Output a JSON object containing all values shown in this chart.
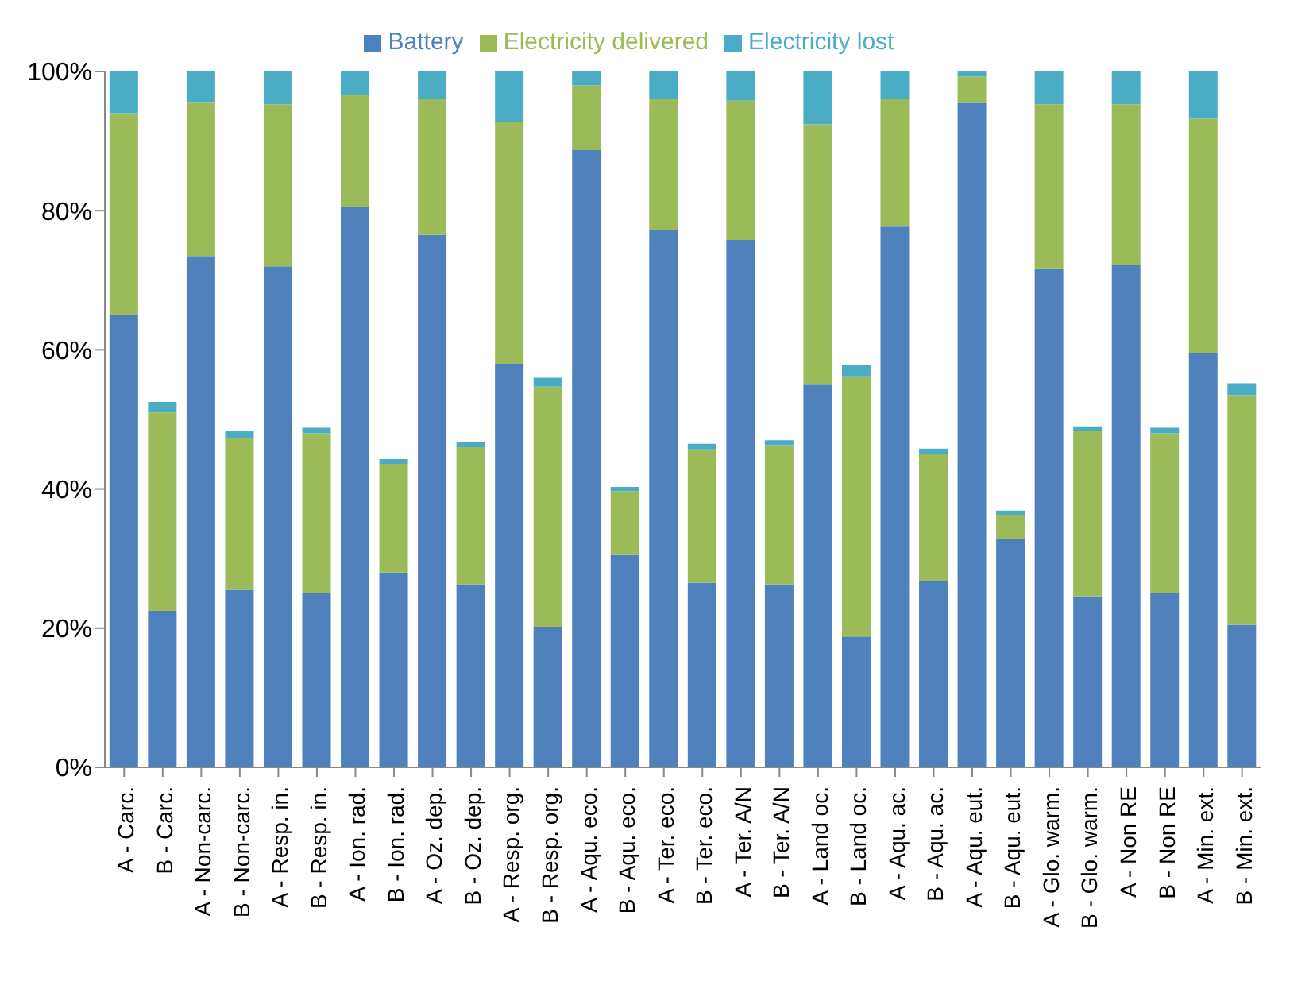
{
  "chart_data": {
    "type": "bar",
    "stacked": true,
    "legend": "top",
    "grid": false,
    "categories": [
      "A - Carc.",
      "B - Carc.",
      "A - Non-carc.",
      "B - Non-carc.",
      "A - Resp. in.",
      "B - Resp. in.",
      "A - Ion. rad.",
      "B - Ion. rad.",
      "A - Oz. dep.",
      "B - Oz. dep.",
      "A - Resp. org.",
      "B - Resp. org.",
      "A - Aqu. eco.",
      "B - Aqu. eco.",
      "A - Ter. eco.",
      "B - Ter. eco.",
      "A - Ter. A/N",
      "B - Ter. A/N",
      "A - Land oc.",
      "B - Land oc.",
      "A - Aqu. ac.",
      "B - Aqu. ac.",
      "A - Aqu. eut.",
      "B - Aqu. eut.",
      "A - Glo. warm.",
      "B - Glo. warm.",
      "A - Non RE",
      "B - Non RE",
      "A - Min. ext.",
      "B - Min. ext."
    ],
    "series": [
      {
        "name": "Battery",
        "color": "#4f81bd",
        "values": [
          65,
          22.5,
          73.5,
          25.5,
          72,
          25,
          80.5,
          28,
          76.5,
          26.3,
          58,
          20.2,
          88.7,
          30.5,
          77.2,
          26.5,
          75.8,
          26.3,
          55,
          18.8,
          77.7,
          26.8,
          95.5,
          32.8,
          71.6,
          24.6,
          72.2,
          25,
          59.6,
          20.5
        ]
      },
      {
        "name": "Electricity delivered",
        "color": "#9bbb59",
        "values": [
          29,
          28.5,
          22,
          21.8,
          23.3,
          23,
          16.2,
          15.6,
          19.5,
          19.7,
          34.8,
          34.5,
          9.3,
          9.2,
          18.8,
          19.2,
          20,
          20,
          37.4,
          37.4,
          18.3,
          18.2,
          3.8,
          3.5,
          23.7,
          23.7,
          23.1,
          23,
          33.6,
          33
        ]
      },
      {
        "name": "Electricity lost",
        "color": "#4bacc6",
        "values": [
          6,
          1.5,
          4.5,
          1,
          4.7,
          0.8,
          3.3,
          0.7,
          4,
          0.7,
          7.2,
          1.3,
          2,
          0.6,
          4,
          0.8,
          4.2,
          0.7,
          7.6,
          1.6,
          4,
          0.8,
          0.7,
          0.6,
          4.7,
          0.7,
          4.7,
          0.8,
          6.8,
          1.7
        ]
      }
    ],
    "ylim": [
      0,
      100
    ],
    "yticks": [
      {
        "value": 0,
        "label": "0%"
      },
      {
        "value": 20,
        "label": "20%"
      },
      {
        "value": 40,
        "label": "40%"
      },
      {
        "value": 60,
        "label": "60%"
      },
      {
        "value": 80,
        "label": "80%"
      },
      {
        "value": 100,
        "label": "100%"
      }
    ]
  }
}
